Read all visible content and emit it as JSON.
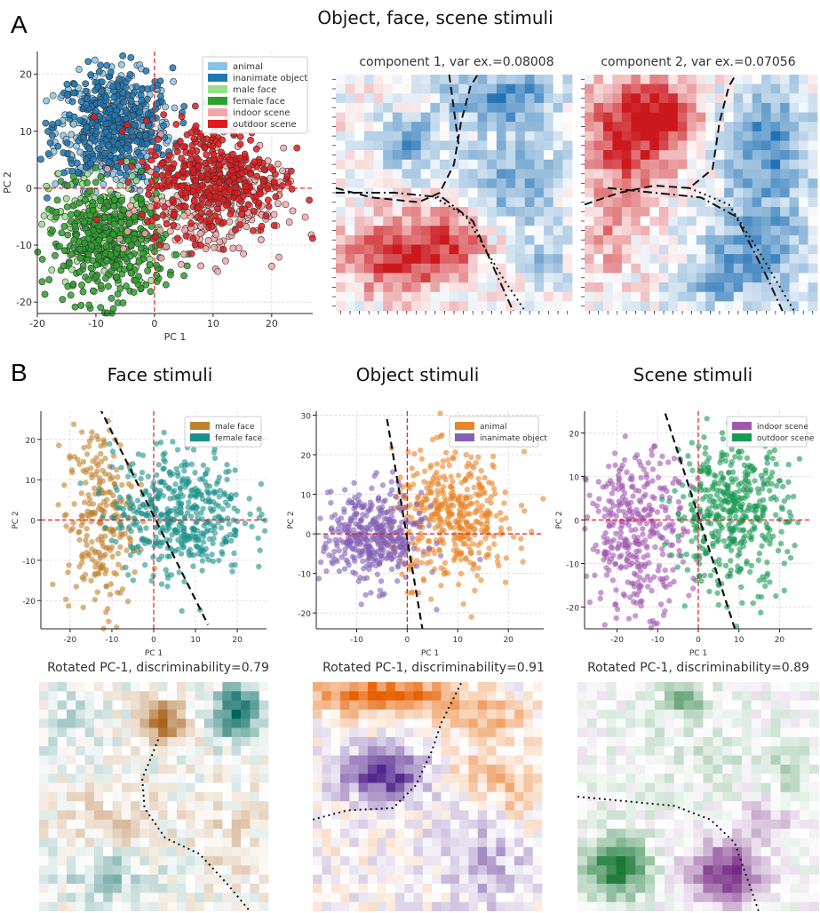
{
  "panel_a": {
    "letter": "A",
    "title": "Object, face, scene stimuli",
    "component1_title": "component 1, var ex.=0.08008",
    "component2_title": "component 2, var ex.=0.07056"
  },
  "panel_b": {
    "letter": "B",
    "face_title": "Face stimuli",
    "object_title": "Object stimuli",
    "scene_title": "Scene stimuli",
    "face_rot_title": "Rotated PC-1, discriminability=0.79",
    "object_rot_title": "Rotated PC-1, discriminability=0.91",
    "scene_rot_title": "Rotated PC-1, discriminability=0.89"
  },
  "colors": {
    "animal": "#87c3e6",
    "inanimate": "#1f77b4",
    "male_face_light": "#98df8a",
    "female_face": "#2ca02c",
    "indoor_scene": "#f4a6a6",
    "outdoor_scene": "#e31a1c",
    "male_face_b": "#bf812d",
    "female_face_b": "#1b8f8a",
    "animal_b": "#e8852a",
    "inanimate_b": "#8461b5",
    "indoor_b": "#a256b0",
    "outdoor_b": "#1a9a54"
  },
  "chart_data": [
    {
      "id": "a-scatter",
      "type": "scatter",
      "xlabel": "PC 1",
      "ylabel": "PC 2",
      "xlim": [
        -20,
        27
      ],
      "ylim": [
        -22,
        24
      ],
      "xticks": [
        -20,
        -10,
        0,
        10,
        20
      ],
      "yticks": [
        -20,
        -10,
        0,
        10,
        20
      ],
      "grid": true,
      "legend_position": "top-right",
      "series": [
        {
          "name": "animal",
          "center": [
            -7,
            10
          ],
          "spread": [
            5,
            5
          ],
          "n": 330
        },
        {
          "name": "inanimate object",
          "center": [
            -7,
            11
          ],
          "spread": [
            5,
            5
          ],
          "n": 380
        },
        {
          "name": "male face",
          "center": [
            -8,
            -7
          ],
          "spread": [
            5,
            5
          ],
          "n": 200
        },
        {
          "name": "female face",
          "center": [
            -8,
            -10
          ],
          "spread": [
            5,
            5
          ],
          "n": 400
        },
        {
          "name": "indoor scene",
          "center": [
            10,
            -3
          ],
          "spread": [
            6,
            5
          ],
          "n": 260
        },
        {
          "name": "outdoor scene",
          "center": [
            10,
            2
          ],
          "spread": [
            6,
            5
          ],
          "n": 380
        }
      ]
    },
    {
      "id": "face-scatter",
      "type": "scatter",
      "xlabel": "PC 1",
      "ylabel": "PC 2",
      "xlim": [
        -27,
        27
      ],
      "ylim": [
        -27,
        27
      ],
      "xticks": [
        -20,
        -10,
        0,
        10,
        20
      ],
      "yticks": [
        -20,
        -10,
        0,
        10,
        20
      ],
      "grid": true,
      "legend_position": "top-right",
      "boundary": [
        [
          -13,
          28
        ],
        [
          13,
          -26
        ]
      ],
      "series": [
        {
          "name": "male face",
          "center": [
            -13,
            0
          ],
          "spread": [
            4,
            12
          ],
          "n": 250
        },
        {
          "name": "female face",
          "center": [
            6,
            2
          ],
          "spread": [
            8,
            8
          ],
          "n": 450
        }
      ]
    },
    {
      "id": "object-scatter",
      "type": "scatter",
      "xlabel": "PC 1",
      "ylabel": "PC 2",
      "xlim": [
        -18,
        27
      ],
      "ylim": [
        -24,
        31
      ],
      "xticks": [
        -10,
        0,
        10,
        20
      ],
      "yticks": [
        -20,
        -10,
        0,
        10,
        20,
        30
      ],
      "grid": true,
      "legend_position": "top-right",
      "boundary": [
        [
          -4,
          29
        ],
        [
          3,
          -24
        ]
      ],
      "series": [
        {
          "name": "animal",
          "center": [
            9,
            4
          ],
          "spread": [
            6,
            8
          ],
          "n": 420
        },
        {
          "name": "inanimate object",
          "center": [
            -7,
            -1
          ],
          "spread": [
            5,
            6
          ],
          "n": 400
        }
      ]
    },
    {
      "id": "scene-scatter",
      "type": "scatter",
      "xlabel": "PC 1",
      "ylabel": "PC 2",
      "xlim": [
        -28,
        28
      ],
      "ylim": [
        -25,
        25
      ],
      "xticks": [
        -20,
        -10,
        0,
        10,
        20
      ],
      "yticks": [
        -20,
        -10,
        0,
        10,
        20
      ],
      "grid": true,
      "legend_position": "top-right",
      "boundary": [
        [
          -9,
          27
        ],
        [
          9,
          -25
        ]
      ],
      "series": [
        {
          "name": "indoor scene",
          "center": [
            -15,
            -3
          ],
          "spread": [
            6,
            9
          ],
          "n": 350
        },
        {
          "name": "outdoor scene",
          "center": [
            8,
            2
          ],
          "spread": [
            7,
            9
          ],
          "n": 450
        }
      ]
    },
    {
      "id": "comp1",
      "type": "heatmap",
      "palette": "red-blue",
      "rows": 25,
      "cols": 25
    },
    {
      "id": "comp2",
      "type": "heatmap",
      "palette": "red-blue",
      "rows": 25,
      "cols": 25
    },
    {
      "id": "face-rot",
      "type": "heatmap",
      "palette": "teal-brown",
      "rows": 25,
      "cols": 25
    },
    {
      "id": "object-rot",
      "type": "heatmap",
      "palette": "orange-purple",
      "rows": 25,
      "cols": 25
    },
    {
      "id": "scene-rot",
      "type": "heatmap",
      "palette": "green-purple",
      "rows": 25,
      "cols": 25
    }
  ]
}
